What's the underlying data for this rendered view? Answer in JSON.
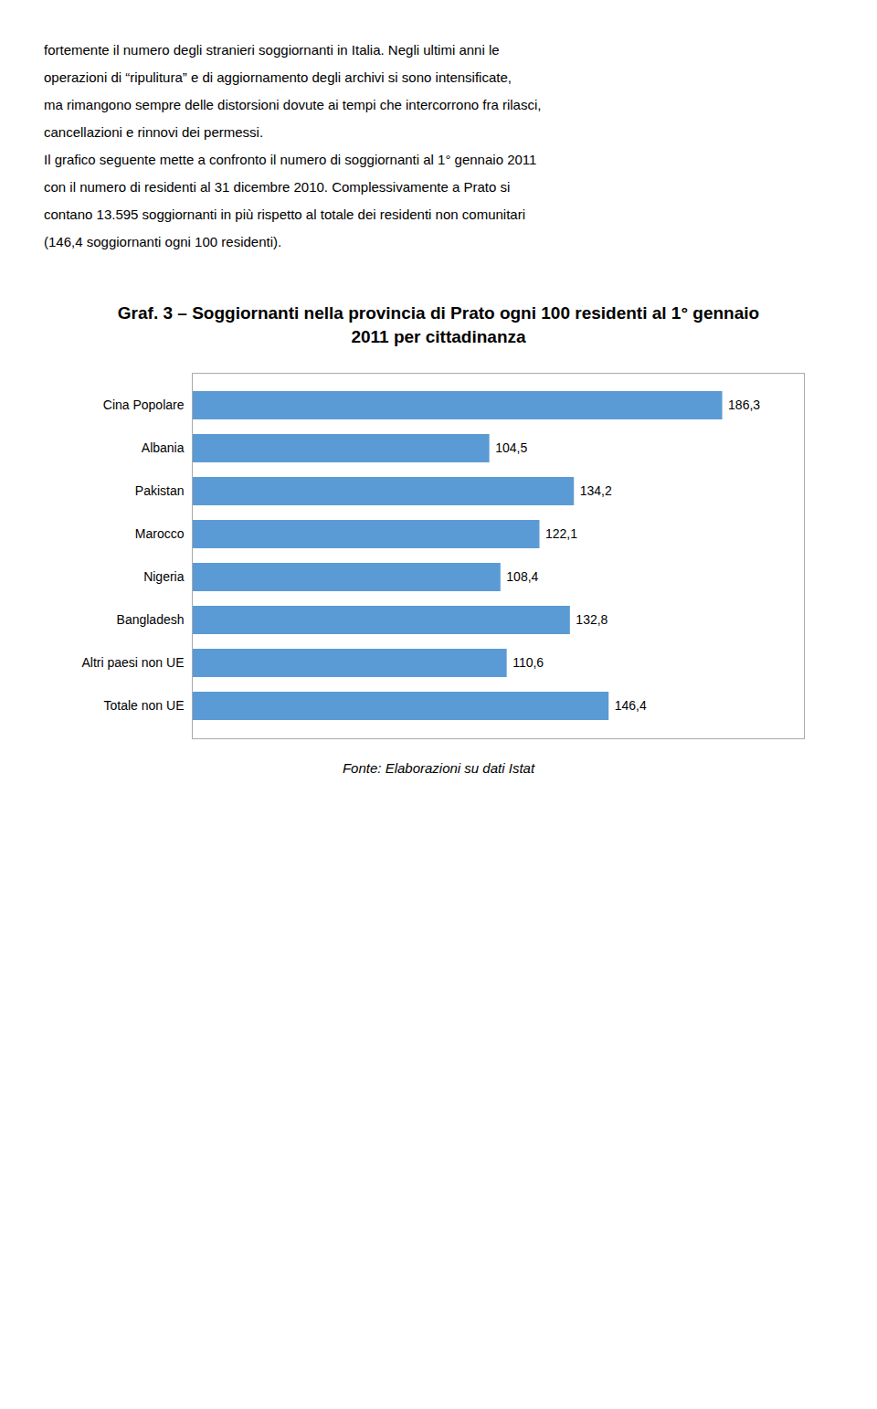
{
  "chart_data": {
    "type": "bar",
    "orientation": "horizontal",
    "title": "Graf. 3 – Soggiornanti nella provincia di Prato ogni 100 residenti al 1° gennaio 2011 per cittadinanza",
    "caption": "Fonte: Elaborazioni su dati Istat",
    "annotations": [
      "fortemente il numero degli stranieri soggiornanti in Italia. Negli ultimi anni le",
      "operazioni di “ripulitura” e di aggiornamento degli archivi si sono intensificate,",
      "ma rimangono sempre delle distorsioni dovute ai tempi che intercorrono fra rilasci,",
      "cancellazioni e rinnovi dei permessi.",
      "Il grafico seguente mette a confronto il numero di soggiornanti al 1° gennaio 2011",
      "con il numero di residenti al 31 dicembre 2010. Complessivamente a Prato si",
      "contano 13.595 soggiornanti in più rispetto al totale dei residenti non comunitari",
      "(146,4 soggiornanti ogni 100 residenti)."
    ],
    "categories": [
      "Cina Popolare",
      "Albania",
      "Pakistan",
      "Marocco",
      "Nigeria",
      "Bangladesh",
      "Altri paesi non UE",
      "Totale non UE"
    ],
    "values": [
      186.3,
      104.5,
      134.2,
      122.1,
      108.4,
      132.8,
      110.6,
      146.4
    ],
    "value_labels": [
      "186,3",
      "104,5",
      "134,2",
      "122,1",
      "108,4",
      "132,8",
      "110,6",
      "146,4"
    ],
    "data_labels": true,
    "color": "#5b9bd5",
    "xlim": [
      0,
      215
    ],
    "tick_labels": "y",
    "grid": false
  }
}
